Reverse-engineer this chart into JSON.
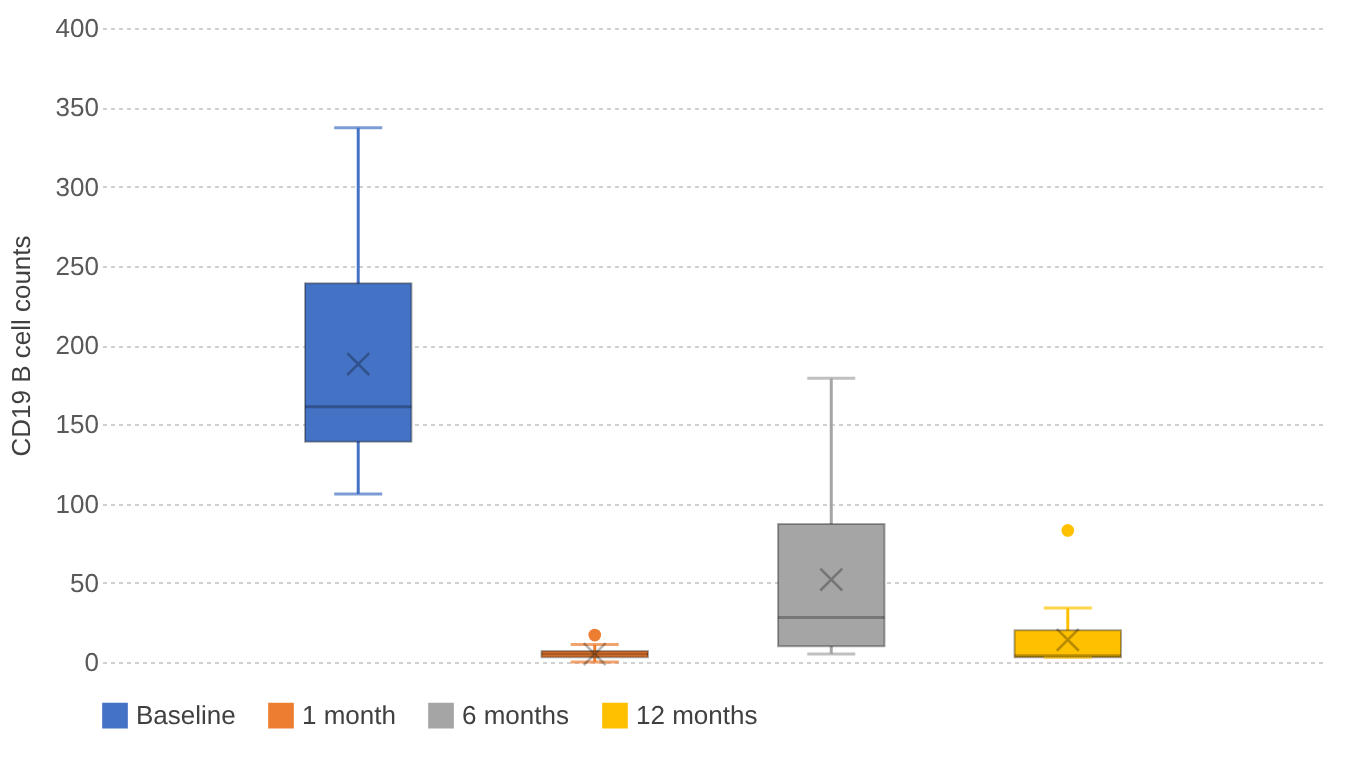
{
  "chart_data": {
    "type": "box",
    "ylabel": "CD19 B cell counts",
    "categories": [
      null
    ],
    "series": [
      {
        "name": "Baseline",
        "color": "#4472c4",
        "boxes": [
          {
            "low": 106,
            "q1": 139,
            "median": 161,
            "q3": 239,
            "high": 337,
            "mean": 188
          }
        ]
      },
      {
        "name": "1 month",
        "color": "#ed7d31",
        "boxes": [
          {
            "low": 0,
            "q1": 3,
            "median": 5,
            "q3": 7,
            "high": 11,
            "mean": 5,
            "outliers": [
              17
            ]
          }
        ]
      },
      {
        "name": "6 months",
        "color": "#a5a5a5",
        "boxes": [
          {
            "low": 5,
            "q1": 10,
            "median": 28,
            "q3": 87,
            "high": 179,
            "mean": 52
          }
        ]
      },
      {
        "name": "12 months",
        "color": "#ffc000",
        "boxes": [
          {
            "low": 3,
            "q1": 3,
            "median": 4,
            "q3": 20,
            "high": 34,
            "mean": 14,
            "outliers": [
              83
            ]
          }
        ]
      }
    ],
    "ylim": [
      0,
      400
    ],
    "yticks": [
      0,
      50,
      100,
      150,
      200,
      250,
      300,
      350,
      400
    ],
    "grid": "y",
    "legend": "bottom"
  }
}
